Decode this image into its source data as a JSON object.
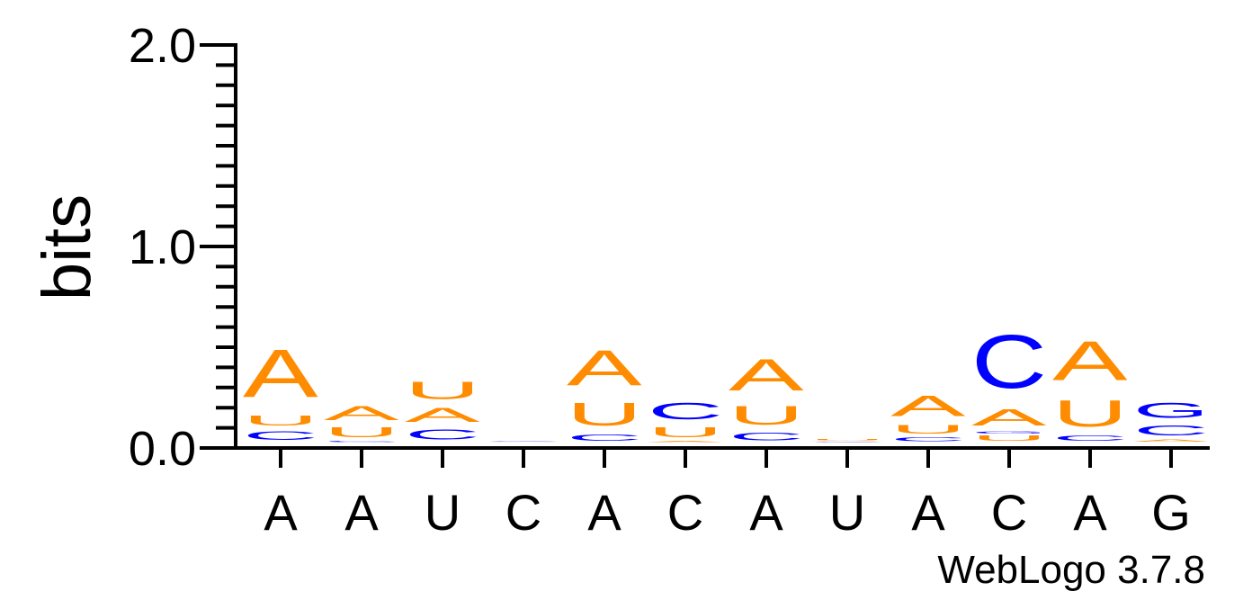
{
  "chart_data": {
    "type": "sequence-logo",
    "ylabel": "bits",
    "ylim": [
      0,
      2.0
    ],
    "yticks": [
      "0.0",
      "1.0",
      "2.0"
    ],
    "ytick_values": [
      0,
      1,
      2
    ],
    "positions": [
      "A",
      "A",
      "U",
      "C",
      "A",
      "C",
      "A",
      "U",
      "A",
      "C",
      "A",
      "G"
    ],
    "colors": {
      "A": "#FF8C00",
      "U": "#FF8C00",
      "C": "#0000FF",
      "G": "#0000FF"
    },
    "stacks": [
      [
        {
          "letter": "C",
          "height": 0.07
        },
        {
          "letter": "U",
          "height": 0.08
        },
        {
          "letter": "A",
          "height": 0.38
        }
      ],
      [
        {
          "letter": "C",
          "height": 0.01
        },
        {
          "letter": "U",
          "height": 0.08
        },
        {
          "letter": "A",
          "height": 0.11
        }
      ],
      [
        {
          "letter": "C",
          "height": 0.08
        },
        {
          "letter": "A",
          "height": 0.11
        },
        {
          "letter": "U",
          "height": 0.14
        }
      ],
      [
        {
          "letter": "A",
          "height": 0.005
        },
        {
          "letter": "C",
          "height": 0.005
        }
      ],
      [
        {
          "letter": "C",
          "height": 0.05
        },
        {
          "letter": "U",
          "height": 0.18
        },
        {
          "letter": "A",
          "height": 0.28
        }
      ],
      [
        {
          "letter": "A",
          "height": 0.01
        },
        {
          "letter": "U",
          "height": 0.08
        },
        {
          "letter": "C",
          "height": 0.13
        }
      ],
      [
        {
          "letter": "C",
          "height": 0.06
        },
        {
          "letter": "U",
          "height": 0.15
        },
        {
          "letter": "A",
          "height": 0.25
        }
      ],
      [
        {
          "letter": "C",
          "height": 0.005
        },
        {
          "letter": "A",
          "height": 0.005
        },
        {
          "letter": "U",
          "height": 0.01
        }
      ],
      [
        {
          "letter": "C",
          "height": 0.03
        },
        {
          "letter": "U",
          "height": 0.07
        },
        {
          "letter": "A",
          "height": 0.16
        }
      ],
      [
        {
          "letter": "U",
          "height": 0.04
        },
        {
          "letter": "G",
          "height": 0.02
        },
        {
          "letter": "A",
          "height": 0.13
        },
        {
          "letter": "C",
          "height": 0.42
        }
      ],
      [
        {
          "letter": "C",
          "height": 0.04
        },
        {
          "letter": "U",
          "height": 0.21
        },
        {
          "letter": "A",
          "height": 0.31
        }
      ],
      [
        {
          "letter": "A",
          "height": 0.02
        },
        {
          "letter": "C",
          "height": 0.08
        },
        {
          "letter": "G",
          "height": 0.12
        }
      ]
    ]
  },
  "credit": "WebLogo 3.7.8"
}
